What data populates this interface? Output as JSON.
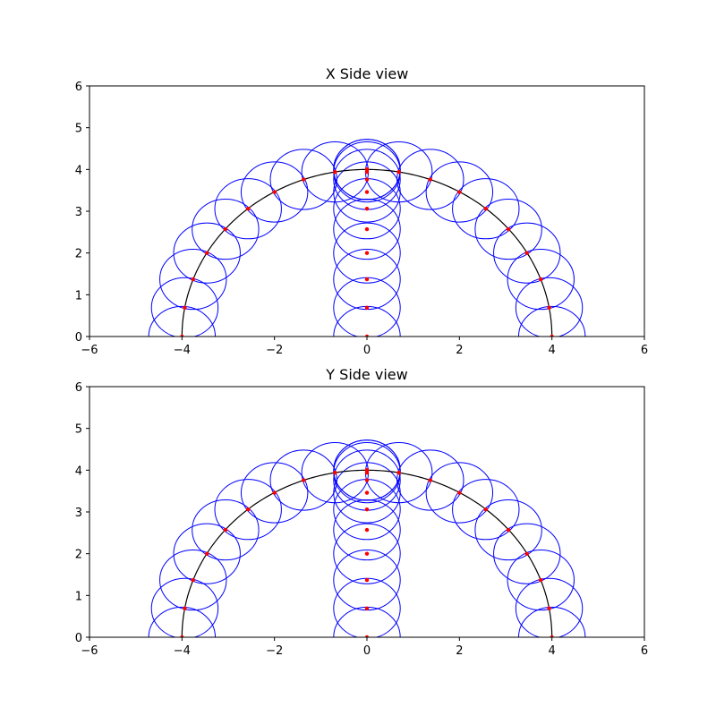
{
  "chart_data": [
    {
      "type": "scatter",
      "title": "X Side view",
      "xlabel": "",
      "ylabel": "",
      "xlim": [
        -6,
        6
      ],
      "ylim": [
        0,
        6
      ],
      "xticks": [
        "−6",
        "−4",
        "−2",
        "0",
        "2",
        "4",
        "6"
      ],
      "yticks": [
        "0",
        "1",
        "2",
        "3",
        "4",
        "5",
        "6"
      ],
      "xtick_values": [
        -6,
        -4,
        -2,
        0,
        2,
        4,
        6
      ],
      "ytick_values": [
        0,
        1,
        2,
        3,
        4,
        5,
        6
      ],
      "grid": false,
      "arc": {
        "radius": 4,
        "color": "#000000"
      },
      "circle_radius": 0.72,
      "circle_color": "#0000ff",
      "point_color": "#ff0000",
      "arc_points": [
        [
          -4.0,
          0.0
        ],
        [
          -3.94,
          0.69
        ],
        [
          -3.76,
          1.37
        ],
        [
          -3.46,
          2.0
        ],
        [
          -3.06,
          2.57
        ],
        [
          -2.57,
          3.06
        ],
        [
          -2.0,
          3.46
        ],
        [
          -1.37,
          3.76
        ],
        [
          -0.69,
          3.94
        ],
        [
          0.0,
          4.0
        ],
        [
          0.69,
          3.94
        ],
        [
          1.37,
          3.76
        ],
        [
          2.0,
          3.46
        ],
        [
          2.57,
          3.06
        ],
        [
          3.06,
          2.57
        ],
        [
          3.46,
          2.0
        ],
        [
          3.76,
          1.37
        ],
        [
          3.94,
          0.69
        ],
        [
          4.0,
          0.0
        ]
      ],
      "axis_points": [
        [
          0,
          0.0
        ],
        [
          0,
          0.69
        ],
        [
          0,
          1.37
        ],
        [
          0,
          2.0
        ],
        [
          0,
          2.57
        ],
        [
          0,
          3.06
        ],
        [
          0,
          3.46
        ],
        [
          0,
          3.76
        ],
        [
          0,
          3.94
        ],
        [
          0,
          4.0
        ]
      ]
    },
    {
      "type": "scatter",
      "title": "Y Side view",
      "xlabel": "",
      "ylabel": "",
      "xlim": [
        -6,
        6
      ],
      "ylim": [
        0,
        6
      ],
      "xticks": [
        "−6",
        "−4",
        "−2",
        "0",
        "2",
        "4",
        "6"
      ],
      "yticks": [
        "0",
        "1",
        "2",
        "3",
        "4",
        "5",
        "6"
      ],
      "xtick_values": [
        -6,
        -4,
        -2,
        0,
        2,
        4,
        6
      ],
      "ytick_values": [
        0,
        1,
        2,
        3,
        4,
        5,
        6
      ],
      "grid": false,
      "arc": {
        "radius": 4,
        "color": "#000000"
      },
      "circle_radius": 0.72,
      "circle_color": "#0000ff",
      "point_color": "#ff0000",
      "arc_points": [
        [
          -4.0,
          0.0
        ],
        [
          -3.94,
          0.69
        ],
        [
          -3.76,
          1.37
        ],
        [
          -3.46,
          2.0
        ],
        [
          -3.06,
          2.57
        ],
        [
          -2.57,
          3.06
        ],
        [
          -2.0,
          3.46
        ],
        [
          -1.37,
          3.76
        ],
        [
          -0.69,
          3.94
        ],
        [
          0.0,
          4.0
        ],
        [
          0.69,
          3.94
        ],
        [
          1.37,
          3.76
        ],
        [
          2.0,
          3.46
        ],
        [
          2.57,
          3.06
        ],
        [
          3.06,
          2.57
        ],
        [
          3.46,
          2.0
        ],
        [
          3.76,
          1.37
        ],
        [
          3.94,
          0.69
        ],
        [
          4.0,
          0.0
        ]
      ],
      "axis_points": [
        [
          0,
          0.0
        ],
        [
          0,
          0.69
        ],
        [
          0,
          1.37
        ],
        [
          0,
          2.0
        ],
        [
          0,
          2.57
        ],
        [
          0,
          3.06
        ],
        [
          0,
          3.46
        ],
        [
          0,
          3.76
        ],
        [
          0,
          3.94
        ],
        [
          0,
          4.0
        ]
      ]
    }
  ]
}
